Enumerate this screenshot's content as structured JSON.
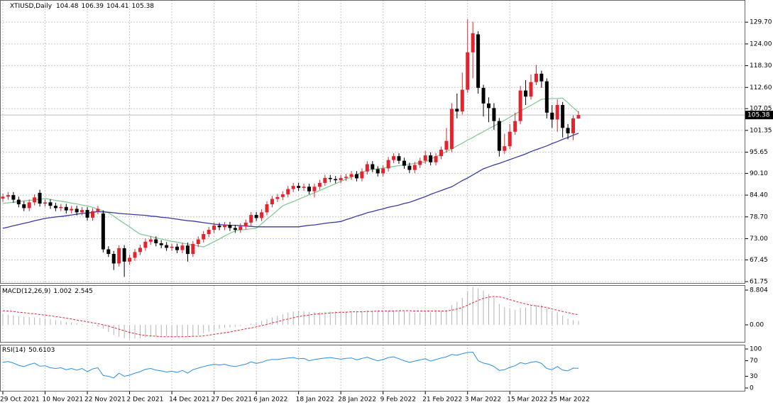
{
  "chart_data": {
    "type": "candlestick",
    "title": "XTIUSD,Daily",
    "categories": [
      "29 Oct 2021",
      null,
      null,
      null,
      null,
      null,
      null,
      null,
      "10 Nov 2021",
      null,
      null,
      null,
      null,
      null,
      null,
      null,
      "22 Nov 2021",
      null,
      null,
      null,
      null,
      null,
      null,
      null,
      "2 Dec 2021",
      null,
      null,
      null,
      null,
      null,
      null,
      null,
      "14 Dec 2021",
      null,
      null,
      null,
      null,
      null,
      null,
      null,
      "27 Dec 2021",
      null,
      null,
      null,
      null,
      null,
      null,
      null,
      "6 Jan 2022",
      null,
      null,
      null,
      null,
      null,
      null,
      null,
      "18 Jan 2022",
      null,
      null,
      null,
      null,
      null,
      null,
      null,
      "28 Jan 2022",
      null,
      null,
      null,
      null,
      null,
      null,
      null,
      "9 Feb 2022",
      null,
      null,
      null,
      null,
      null,
      null,
      null,
      "21 Feb 2022",
      null,
      null,
      null,
      null,
      null,
      null,
      null,
      "3 Mar 2022",
      null,
      null,
      null,
      null,
      null,
      null,
      null,
      "15 Mar 2022",
      null,
      null,
      null,
      null,
      null,
      null,
      null,
      "25 Mar 2022",
      null,
      null,
      null,
      null,
      null
    ],
    "open": [
      83.5,
      84.0,
      84.4,
      83.2,
      82.0,
      81.0,
      82.5,
      85.0,
      82.2,
      82.5,
      81.6,
      81.0,
      81.3,
      80.4,
      80.8,
      79.9,
      80.5,
      78.5,
      80.2,
      79.6,
      70.2,
      69.0,
      66.5,
      70.5,
      67.0,
      68.0,
      69.5,
      70.6,
      72.2,
      72.8,
      71.8,
      71.3,
      70.6,
      70.9,
      70.0,
      71.2,
      69.0,
      71.6,
      72.8,
      74.2,
      75.3,
      76.4,
      76.0,
      76.6,
      75.8,
      75.3,
      76.2,
      77.2,
      79.2,
      78.4,
      79.9,
      82.0,
      83.4,
      83.9,
      84.6,
      86.0,
      86.8,
      86.3,
      86.6,
      85.4,
      86.6,
      87.6,
      88.9,
      88.6,
      88.3,
      88.9,
      89.2,
      89.9,
      88.8,
      90.6,
      92.5,
      91.2,
      90.1,
      91.4,
      93.6,
      94.6,
      93.4,
      92.1,
      91.0,
      92.3,
      93.4,
      94.8,
      93.0,
      94.6,
      96.3,
      96.5,
      107.0,
      106.3,
      112.0,
      121.8,
      126.5,
      112.5,
      108.4,
      107.2,
      103.8,
      96.0,
      97.2,
      101.0,
      103.8,
      111.8,
      110.2,
      114.0,
      116.2,
      114.2,
      106.0,
      104.2,
      108.0,
      102.0,
      100.6,
      104.48
    ],
    "high": [
      84.8,
      85.2,
      85.2,
      84.0,
      82.8,
      83.3,
      84.6,
      85.8,
      83.3,
      83.3,
      82.4,
      82.1,
      82.1,
      81.6,
      81.6,
      81.3,
      81.3,
      81.0,
      81.6,
      80.4,
      71.0,
      69.8,
      71.3,
      71.3,
      68.8,
      70.3,
      71.4,
      73.0,
      73.6,
      73.6,
      72.6,
      72.1,
      71.7,
      71.7,
      72.0,
      72.0,
      72.4,
      73.6,
      75.0,
      76.1,
      77.2,
      77.2,
      77.4,
      77.4,
      76.6,
      77.0,
      78.0,
      80.0,
      80.0,
      80.7,
      82.8,
      84.2,
      84.7,
      85.4,
      86.8,
      87.6,
      87.6,
      87.4,
      87.4,
      87.4,
      88.4,
      89.7,
      89.7,
      89.4,
      89.7,
      90.0,
      90.7,
      90.7,
      91.4,
      93.3,
      93.3,
      92.0,
      92.2,
      94.4,
      95.4,
      95.4,
      94.2,
      92.9,
      93.1,
      94.2,
      96.0,
      95.6,
      95.4,
      97.1,
      102.0,
      108.5,
      111.0,
      116.5,
      130.5,
      129.8,
      127.3,
      113.3,
      110.0,
      108.5,
      104.6,
      100.5,
      103.0,
      106.0,
      113.0,
      114.5,
      116.0,
      118.5,
      117.0,
      115.0,
      108.0,
      109.5,
      108.8,
      103.0,
      105.3,
      106.39
    ],
    "low": [
      82.7,
      83.2,
      82.4,
      81.2,
      80.2,
      80.2,
      81.7,
      81.4,
      81.4,
      80.8,
      80.2,
      80.2,
      79.6,
      79.6,
      79.1,
      79.1,
      77.7,
      77.7,
      79.4,
      69.4,
      68.2,
      64.8,
      65.7,
      63.0,
      66.2,
      67.2,
      68.7,
      69.8,
      71.4,
      71.0,
      70.5,
      69.8,
      69.8,
      69.2,
      69.2,
      67.0,
      68.2,
      70.8,
      72.0,
      73.4,
      74.5,
      75.2,
      75.2,
      75.0,
      74.5,
      74.5,
      75.4,
      76.4,
      77.6,
      77.6,
      79.1,
      81.2,
      82.6,
      83.1,
      83.8,
      85.2,
      85.5,
      85.5,
      84.6,
      83.8,
      85.8,
      86.8,
      87.8,
      87.5,
      87.5,
      88.1,
      88.4,
      88.0,
      88.0,
      89.8,
      90.4,
      89.3,
      89.3,
      90.6,
      92.8,
      92.6,
      91.3,
      90.2,
      90.2,
      91.5,
      92.6,
      92.2,
      92.2,
      93.8,
      95.5,
      95.7,
      104.5,
      105.5,
      111.2,
      115.0,
      111.0,
      105.0,
      103.5,
      101.5,
      94.5,
      95.2,
      96.4,
      100.2,
      103.0,
      108.0,
      109.4,
      113.2,
      112.5,
      104.5,
      102.0,
      101.0,
      99.5,
      99.0,
      98.8,
      104.41
    ],
    "close": [
      84.0,
      84.4,
      83.2,
      82.0,
      81.0,
      82.5,
      83.8,
      82.2,
      82.5,
      81.6,
      81.0,
      81.3,
      80.4,
      80.8,
      79.9,
      80.5,
      78.5,
      80.2,
      80.8,
      70.2,
      69.0,
      66.5,
      70.5,
      67.0,
      68.0,
      69.5,
      70.6,
      72.2,
      72.8,
      71.8,
      71.3,
      70.6,
      70.9,
      70.0,
      71.2,
      69.0,
      71.6,
      72.8,
      74.2,
      75.3,
      76.4,
      76.0,
      76.6,
      75.8,
      75.3,
      76.2,
      77.2,
      79.2,
      78.4,
      79.9,
      82.0,
      83.4,
      83.9,
      84.6,
      86.0,
      86.8,
      86.3,
      86.6,
      85.4,
      86.6,
      87.6,
      88.9,
      88.6,
      88.3,
      88.9,
      89.2,
      89.9,
      88.8,
      90.6,
      92.5,
      91.2,
      90.1,
      91.4,
      93.6,
      94.6,
      93.4,
      92.1,
      91.0,
      92.3,
      93.4,
      94.8,
      93.0,
      94.6,
      96.3,
      98.6,
      107.0,
      106.3,
      112.0,
      121.8,
      126.8,
      112.5,
      108.4,
      107.2,
      103.8,
      96.0,
      97.2,
      101.0,
      103.8,
      111.8,
      110.2,
      114.0,
      116.2,
      114.2,
      106.0,
      104.2,
      108.0,
      102.0,
      100.6,
      104.5,
      105.38
    ],
    "up_color": "#e3242f",
    "down_color": "#000000",
    "ylim": [
      61.2,
      135.5
    ],
    "yticks": [
      {
        "value": 129.7,
        "label": "129.70"
      },
      {
        "value": 124,
        "label": "124.00"
      },
      {
        "value": 118.3,
        "label": "118.30"
      },
      {
        "value": 112.6,
        "label": "112.60"
      },
      107.05,
      101.35,
      95.65,
      {
        "value": 90.1,
        "label": "90.10"
      },
      {
        "value": 84.4,
        "label": "84.40"
      },
      {
        "value": 78.7,
        "label": "78.70"
      },
      {
        "value": 73,
        "label": "73.00"
      },
      67.45,
      61.75
    ],
    "grid": true,
    "overlays": [
      {
        "color": "#86c99b",
        "values": [
          82.2,
          82.4,
          82.5,
          82.7,
          82.9,
          83.0,
          83.2,
          83.3,
          83.5,
          83.3,
          83.0,
          82.8,
          82.6,
          82.3,
          82.1,
          81.8,
          81.6,
          81.2,
          80.7,
          80.3,
          79.8,
          78.9,
          77.9,
          77.0,
          76.1,
          75.1,
          74.2,
          73.9,
          73.6,
          73.2,
          72.9,
          72.6,
          72.3,
          72.1,
          71.8,
          71.6,
          71.3,
          71.1,
          70.8,
          71.5,
          72.2,
          72.9,
          73.7,
          74.4,
          75.1,
          75.3,
          75.4,
          75.6,
          75.7,
          76.9,
          78.1,
          79.2,
          80.4,
          81.6,
          82.2,
          82.7,
          83.3,
          83.9,
          84.5,
          85.0,
          85.6,
          86.2,
          86.8,
          87.4,
          88.0,
          88.6,
          89.1,
          89.7,
          90.3,
          90.9,
          91.1,
          91.3,
          91.5,
          91.7,
          91.9,
          92.1,
          92.3,
          92.5,
          92.7,
          92.9,
          93.1,
          93.8,
          94.5,
          95.1,
          95.8,
          96.5,
          97.3,
          98.0,
          98.8,
          99.5,
          100.3,
          101.0,
          101.8,
          102.5,
          103.3,
          104.0,
          104.8,
          105.6,
          106.4,
          107.2,
          107.9,
          108.7,
          109.5,
          109.6,
          109.7,
          109.7,
          109.8,
          108.6,
          107.3,
          106.1
        ]
      },
      {
        "color": "#3a3aa6",
        "values": [
          75.7,
          76.0,
          76.4,
          76.7,
          77.0,
          77.3,
          77.7,
          78.0,
          78.3,
          78.5,
          78.7,
          78.8,
          79.0,
          79.2,
          79.4,
          79.6,
          79.7,
          79.9,
          80.1,
          80.0,
          79.9,
          79.8,
          79.6,
          79.5,
          79.4,
          79.3,
          79.2,
          79.1,
          78.9,
          78.8,
          78.6,
          78.5,
          78.3,
          78.1,
          77.9,
          77.7,
          77.6,
          77.4,
          77.2,
          77.0,
          76.8,
          76.7,
          76.6,
          76.5,
          76.5,
          76.4,
          76.3,
          76.2,
          76.1,
          76.1,
          76.1,
          76.1,
          76.1,
          76.1,
          76.1,
          76.1,
          76.1,
          76.3,
          76.5,
          76.6,
          76.8,
          77.0,
          77.2,
          77.3,
          77.5,
          78.0,
          78.4,
          78.9,
          79.3,
          79.8,
          80.1,
          80.5,
          80.8,
          81.2,
          81.5,
          81.8,
          82.2,
          82.5,
          83.0,
          83.5,
          84.0,
          84.6,
          85.1,
          85.6,
          86.1,
          86.6,
          87.4,
          88.2,
          88.9,
          89.7,
          90.5,
          91.3,
          91.8,
          92.3,
          92.7,
          93.2,
          93.7,
          94.2,
          94.7,
          95.2,
          95.8,
          96.3,
          96.8,
          97.3,
          97.9,
          98.4,
          99.0,
          99.5,
          100.1,
          100.6
        ]
      }
    ],
    "panels": [
      {
        "type": "macd",
        "label": "MACD(12,26,9)",
        "ylim": [
          -4.49,
          10.06
        ],
        "yticks": [
          8.804,
          {
            "value": 0,
            "label": "0.00"
          }
        ],
        "main": {
          "color": "#b4b4b4",
          "values": [
            2.8,
            2.6,
            2.4,
            2.2,
            2.1,
            2.0,
            1.9,
            1.8,
            1.6,
            1.4,
            1.2,
            1.0,
            0.8,
            0.6,
            0.4,
            0.2,
            0.0,
            -0.2,
            -0.4,
            -1.0,
            -1.8,
            -2.6,
            -3.0,
            -3.4,
            -3.5,
            -3.5,
            -3.4,
            -3.2,
            -3.0,
            -2.9,
            -2.9,
            -2.9,
            -2.9,
            -3.0,
            -3.0,
            -3.1,
            -2.9,
            -2.6,
            -2.2,
            -1.8,
            -1.4,
            -1.0,
            -0.8,
            -0.6,
            -0.5,
            -0.3,
            -0.1,
            0.3,
            0.6,
            1.0,
            1.5,
            1.9,
            2.3,
            2.7,
            3.1,
            3.4,
            3.5,
            3.5,
            3.3,
            3.2,
            3.2,
            3.3,
            3.4,
            3.4,
            3.4,
            3.4,
            3.5,
            3.4,
            3.5,
            3.7,
            3.7,
            3.6,
            3.5,
            3.6,
            3.7,
            3.6,
            3.4,
            3.2,
            3.1,
            3.1,
            3.2,
            3.1,
            3.2,
            3.4,
            3.8,
            5.0,
            5.8,
            6.8,
            8.4,
            9.6,
            9.2,
            8.6,
            7.8,
            6.8,
            5.3,
            4.4,
            4.0,
            3.8,
            4.3,
            4.4,
            4.8,
            5.0,
            5.0,
            4.2,
            3.4,
            3.2,
            2.4,
            1.6,
            1.2,
            1.002
          ]
        },
        "signal": {
          "color": "#e0262b",
          "values": [
            3.6,
            3.5,
            3.4,
            3.2,
            3.1,
            2.9,
            2.8,
            2.6,
            2.5,
            2.3,
            2.1,
            1.9,
            1.7,
            1.5,
            1.2,
            1.0,
            0.8,
            0.5,
            0.3,
            0.0,
            -0.3,
            -0.7,
            -1.1,
            -1.5,
            -1.9,
            -2.2,
            -2.5,
            -2.7,
            -2.8,
            -2.9,
            -3.0,
            -3.0,
            -3.0,
            -3.0,
            -3.0,
            -3.0,
            -2.9,
            -2.9,
            -2.8,
            -2.6,
            -2.4,
            -2.2,
            -2.0,
            -1.8,
            -1.5,
            -1.3,
            -1.0,
            -0.8,
            -0.5,
            -0.2,
            0.1,
            0.5,
            0.8,
            1.2,
            1.5,
            1.8,
            2.1,
            2.3,
            2.5,
            2.7,
            2.8,
            2.9,
            3.0,
            3.1,
            3.2,
            3.2,
            3.3,
            3.3,
            3.3,
            3.4,
            3.4,
            3.5,
            3.5,
            3.5,
            3.5,
            3.6,
            3.6,
            3.6,
            3.5,
            3.5,
            3.5,
            3.5,
            3.5,
            3.5,
            3.5,
            3.7,
            4.0,
            4.4,
            5.0,
            5.6,
            6.2,
            6.7,
            7.0,
            7.2,
            7.1,
            6.8,
            6.4,
            6.0,
            5.6,
            5.3,
            5.0,
            4.8,
            4.6,
            4.4,
            4.0,
            3.7,
            3.4,
            3.1,
            2.8,
            2.545
          ]
        }
      },
      {
        "type": "rsi",
        "label": "RSI(14)",
        "ylim": [
          -9,
          111
        ],
        "yticks": [
          100,
          70,
          30,
          0
        ],
        "color": "#2a8ee6",
        "values": [
          66,
          68,
          64,
          58,
          55,
          60,
          64,
          56,
          57,
          52,
          50,
          52,
          47,
          50,
          46,
          50,
          42,
          49,
          52,
          32,
          30,
          26,
          38,
          30,
          33,
          38,
          42,
          48,
          50,
          46,
          44,
          41,
          43,
          40,
          45,
          38,
          47,
          51,
          55,
          58,
          61,
          59,
          61,
          57,
          55,
          58,
          61,
          67,
          63,
          66,
          71,
          73,
          73,
          75,
          77,
          78,
          75,
          76,
          70,
          73,
          75,
          77,
          78,
          76,
          74,
          76,
          77,
          72,
          76,
          79,
          74,
          70,
          73,
          78,
          80,
          75,
          70,
          66,
          69,
          72,
          75,
          69,
          73,
          77,
          80,
          86,
          84,
          88,
          91,
          92,
          70,
          64,
          61,
          55,
          45,
          47,
          53,
          57,
          65,
          62,
          66,
          68,
          63,
          50,
          47,
          55,
          46,
          44,
          51,
          50.6103
        ]
      }
    ]
  }
}
